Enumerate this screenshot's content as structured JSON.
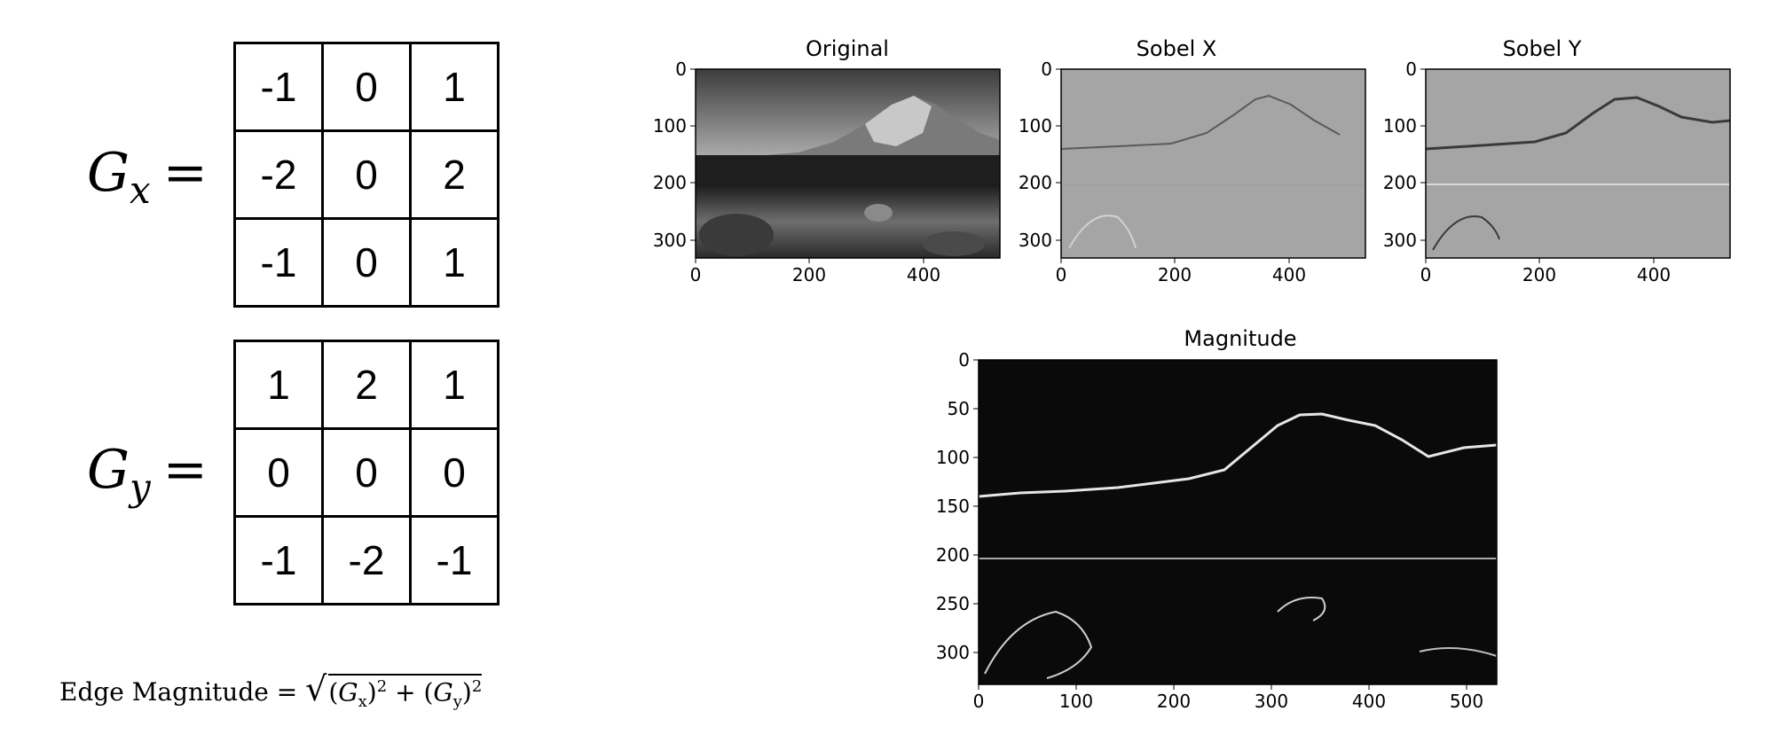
{
  "kernels": {
    "gx": {
      "symbol": "G",
      "subscript": "x",
      "equals": "=",
      "rows": [
        [
          "-1",
          "0",
          "1"
        ],
        [
          "-2",
          "0",
          "2"
        ],
        [
          "-1",
          "0",
          "1"
        ]
      ]
    },
    "gy": {
      "symbol": "G",
      "subscript": "y",
      "equals": "=",
      "rows": [
        [
          "1",
          "2",
          "1"
        ],
        [
          "0",
          "0",
          "0"
        ],
        [
          "-1",
          "-2",
          "-1"
        ]
      ]
    }
  },
  "formula": {
    "label": "Edge Magnitude",
    "equals": "=",
    "gx": "G",
    "gx_sub": "x",
    "gy": "G",
    "gy_sub": "y",
    "power": "2",
    "plus": "+"
  },
  "panels": {
    "original": {
      "title": "Original",
      "xticks": [
        "0",
        "200",
        "400"
      ],
      "yticks": [
        "0",
        "100",
        "200",
        "300"
      ]
    },
    "sobel_x": {
      "title": "Sobel X",
      "xticks": [
        "0",
        "200",
        "400"
      ],
      "yticks": [
        "0",
        "100",
        "200",
        "300"
      ]
    },
    "sobel_y": {
      "title": "Sobel Y",
      "xticks": [
        "0",
        "200",
        "400"
      ],
      "yticks": [
        "0",
        "100",
        "200",
        "300"
      ]
    },
    "magnitude": {
      "title": "Magnitude",
      "xticks": [
        "0",
        "100",
        "200",
        "300",
        "400",
        "500"
      ],
      "yticks": [
        "0",
        "50",
        "100",
        "150",
        "200",
        "250",
        "300"
      ]
    }
  },
  "colors": {
    "original_sky": "#8c8c8c",
    "sobel_bg": "#a5a5a5",
    "magnitude_bg": "#0a0a0a",
    "edge": "#e6e6e6"
  }
}
